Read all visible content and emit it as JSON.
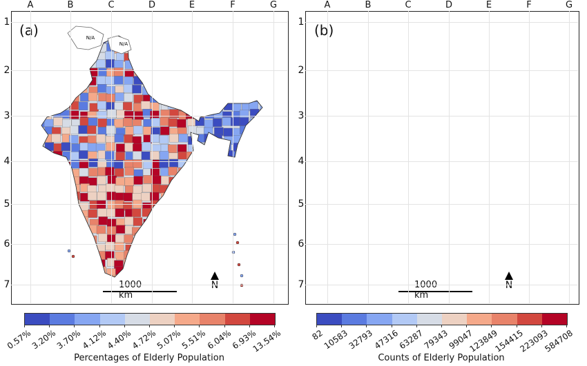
{
  "columns": [
    "A",
    "B",
    "C",
    "D",
    "E",
    "F",
    "G"
  ],
  "rows": [
    "1",
    "2",
    "3",
    "4",
    "5",
    "6",
    "7"
  ],
  "colormap": [
    "#3b4cc0",
    "#5b7be0",
    "#86a6f2",
    "#b2c9f5",
    "#d6dce6",
    "#edd1c2",
    "#f5a98a",
    "#e8836a",
    "#d2483f",
    "#b40426"
  ],
  "colors": {
    "na_fill": "#ffffff",
    "boundary": "#555555"
  },
  "na_label": "N/A",
  "scale_bar": "1000 km",
  "north": "N",
  "panels": [
    {
      "id": "a",
      "label": "(a)",
      "colorbar_title": "Percentages of Elderly Population",
      "tick_labels": [
        "0.57%",
        "3.20%",
        "3.70%",
        "4.12%",
        "4.40%",
        "4.72%",
        "5.07%",
        "5.51%",
        "6.04%",
        "6.93%",
        "13.54%"
      ]
    },
    {
      "id": "b",
      "label": "(b)",
      "colorbar_title": "Counts of Elderly Population",
      "tick_labels": [
        "82",
        "10583",
        "32793",
        "47316",
        "63287",
        "79343",
        "99047",
        "123849",
        "154415",
        "223093",
        "584708"
      ]
    }
  ]
}
